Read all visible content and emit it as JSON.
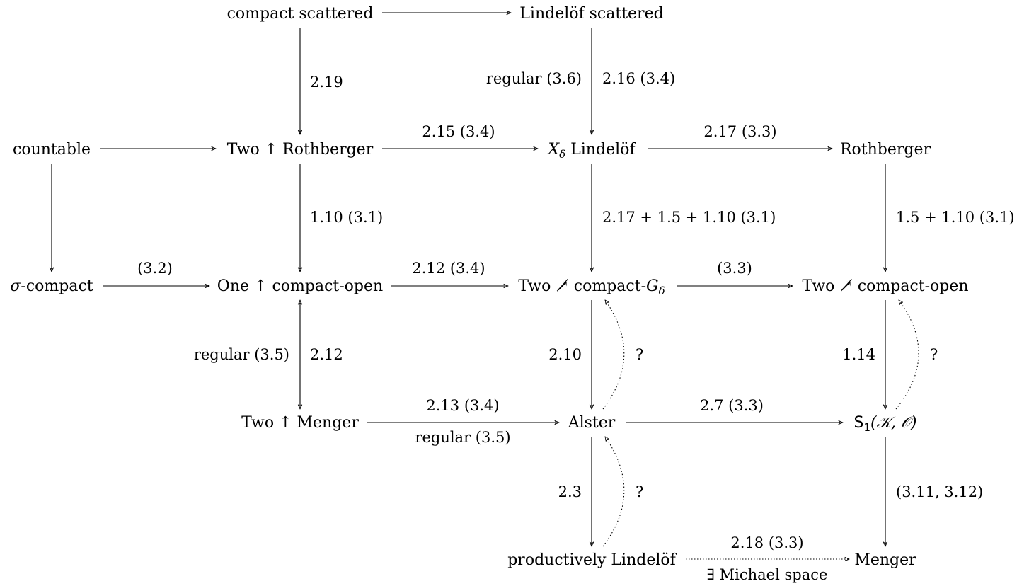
{
  "nodes": {
    "compact_scattered": "compact scattered",
    "lindelof_scattered": "Lindelöf scattered",
    "countable": "countable",
    "two_rothberger": "Two ↑ Rothberger",
    "x_delta_lindelof_x": "X",
    "x_delta_lindelof_sub": "δ",
    "x_delta_lindelof_rest": " Lindelöf",
    "rothberger": "Rothberger",
    "sigma_compact_sigma": "σ",
    "sigma_compact_rest": "-compact",
    "one_compact_open": "One ↑ compact-open",
    "two_not_compact_gdelta_pre": "Two ↗̸ compact-",
    "two_not_compact_gdelta_g": "G",
    "two_not_compact_gdelta_sub": "δ",
    "two_not_compact_open": "Two ↗̸ compact-open",
    "two_menger": "Two ↑ Menger",
    "alster": "Alster",
    "s1_s": "S",
    "s1_sub": "1",
    "s1_args": "(𝒦, 𝒪)",
    "productively_lindelof": "productively Lindelöf",
    "menger": "Menger"
  },
  "edge_labels": {
    "cs_to_two_rothberger": "2.19",
    "ls_to_xdelta_left": "regular (3.6)",
    "ls_to_xdelta_right": "2.16 (3.4)",
    "two_rothberger_to_xdelta": "2.15 (3.4)",
    "xdelta_to_rothberger": "2.17 (3.3)",
    "two_rothberger_to_one": "1.10 (3.1)",
    "xdelta_to_two_gdelta": "2.17 + 1.5 + 1.10 (3.1)",
    "rothberger_to_two_open": "1.5 + 1.10 (3.1)",
    "sigma_to_one": "(3.2)",
    "one_to_two_gdelta": "2.12 (3.4)",
    "two_gdelta_to_two_open": "(3.3)",
    "one_menger_left": "regular (3.5)",
    "one_menger_right": "2.12",
    "two_gdelta_to_alster": "2.10",
    "alster_to_two_gdelta_q": "?",
    "two_open_to_s1": "1.14",
    "s1_to_two_open_q": "?",
    "two_menger_to_alster_top": "2.13 (3.4)",
    "two_menger_to_alster_bottom": "regular (3.5)",
    "alster_to_s1": "2.7 (3.3)",
    "alster_to_prod": "2.3",
    "prod_to_alster_q": "?",
    "s1_to_menger": "(3.11, 3.12)",
    "prod_to_menger_top": "2.18 (3.3)",
    "prod_to_menger_bottom": "∃ Michael space"
  }
}
